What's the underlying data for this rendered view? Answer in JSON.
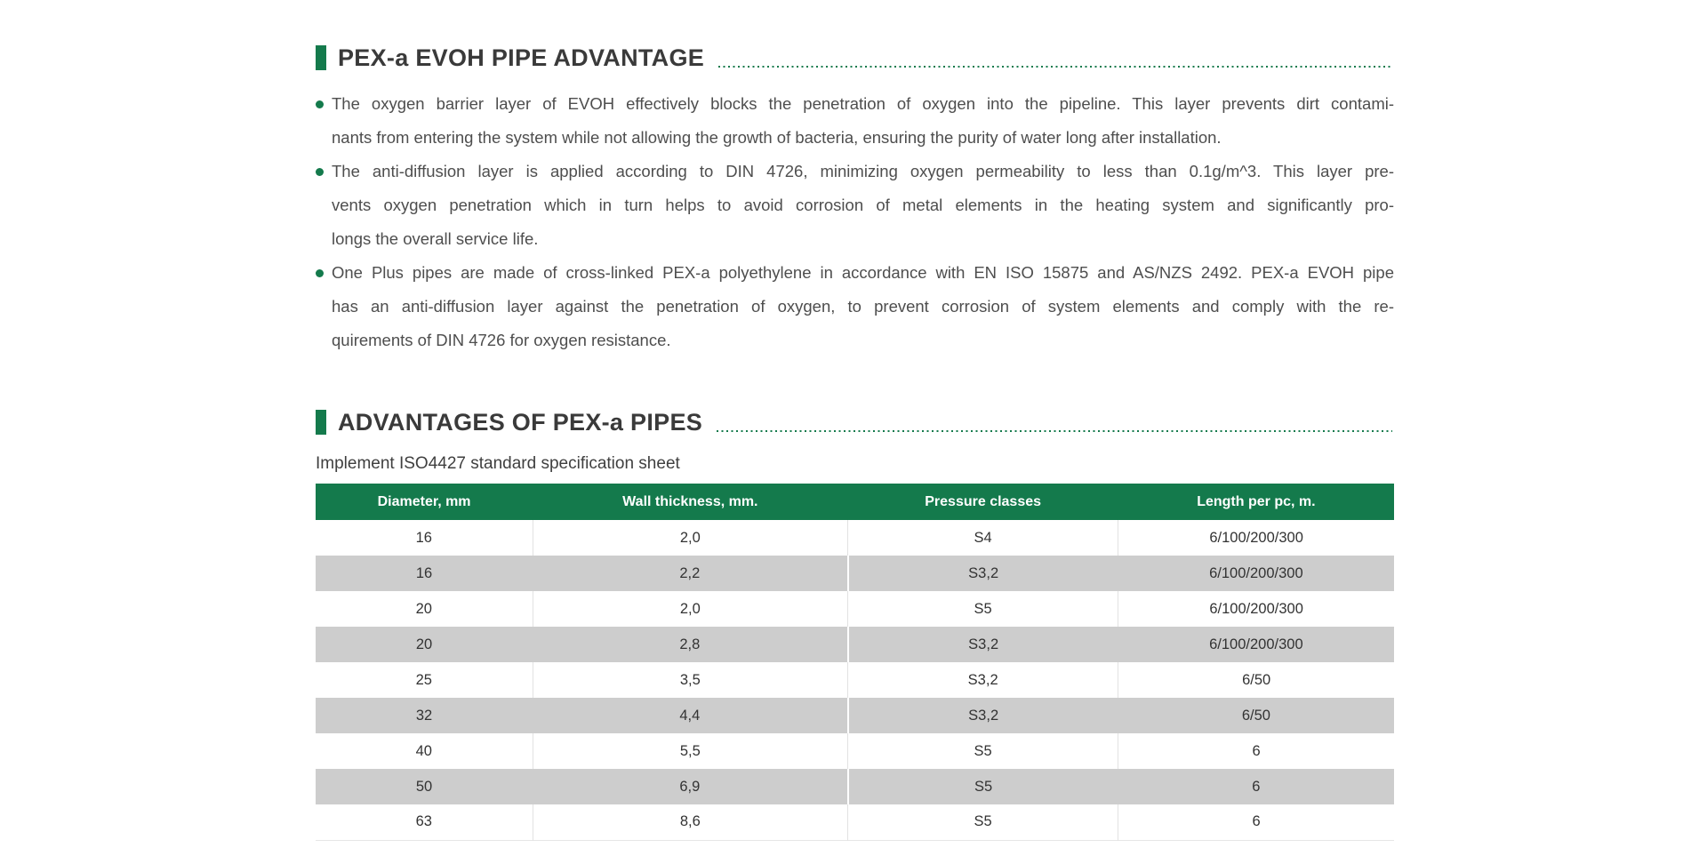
{
  "colors": {
    "green": "#147A4C",
    "heading_text": "#3a3a3a",
    "body_text": "#4e4e4e",
    "row_alt": "#cdcdcd",
    "cell_border": "#e2e2e2",
    "cell_text": "#333333"
  },
  "section_advantage": {
    "title": "PEX-a EVOH PIPE ADVANTAGE",
    "bullets": [
      {
        "lines": [
          "The oxygen barrier layer of EVOH effectively blocks the penetration of oxygen into the pipeline. This layer prevents dirt contami-",
          "nants from entering the system while not allowing the growth of bacteria, ensuring the purity of water long after installation."
        ]
      },
      {
        "lines": [
          "The anti-diffusion layer is applied according to DIN 4726, minimizing oxygen permeability to less than 0.1g/m^3. This layer pre-",
          "vents oxygen penetration which in turn helps to avoid corrosion of metal elements in the heating system and significantly pro-",
          "longs the overall service life."
        ]
      },
      {
        "lines": [
          "One Plus pipes are made of cross-linked PEX-a polyethylene in accordance with EN ISO 15875 and AS/NZS 2492. PEX-a EVOH pipe",
          "has an anti-diffusion layer against the penetration of oxygen, to prevent corrosion of system elements and comply with the re-",
          "quirements of DIN 4726 for oxygen resistance."
        ]
      }
    ]
  },
  "section_pipes": {
    "title": "ADVANTAGES OF PEX-a PIPES",
    "subtitle": "Implement ISO4427 standard specification sheet",
    "table": {
      "headers": [
        "Diameter, mm",
        "Wall thickness, mm.",
        "Pressure classes",
        "Length per pc, m."
      ],
      "rows": [
        [
          "16",
          "2,0",
          "S4",
          "6/100/200/300"
        ],
        [
          "16",
          "2,2",
          "S3,2",
          "6/100/200/300"
        ],
        [
          "20",
          "2,0",
          "S5",
          "6/100/200/300"
        ],
        [
          "20",
          "2,8",
          "S3,2",
          "6/100/200/300"
        ],
        [
          "25",
          "3,5",
          "S3,2",
          "6/50"
        ],
        [
          "32",
          "4,4",
          "S3,2",
          "6/50"
        ],
        [
          "40",
          "5,5",
          "S5",
          "6"
        ],
        [
          "50",
          "6,9",
          "S5",
          "6"
        ],
        [
          "63",
          "8,6",
          "S5",
          "6"
        ]
      ]
    }
  }
}
